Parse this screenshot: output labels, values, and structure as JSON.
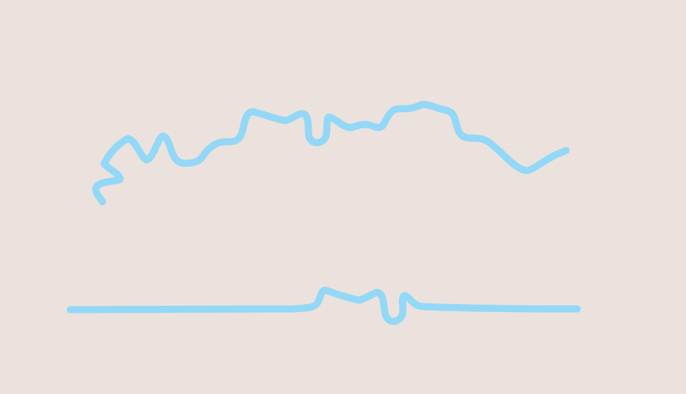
{
  "canvas": {
    "background": "#ebe2dd",
    "stroke_color": "#93d8f6"
  },
  "strokes": [
    {
      "name": "upper-wavy-stroke"
    },
    {
      "name": "lower-flat-stroke"
    }
  ]
}
